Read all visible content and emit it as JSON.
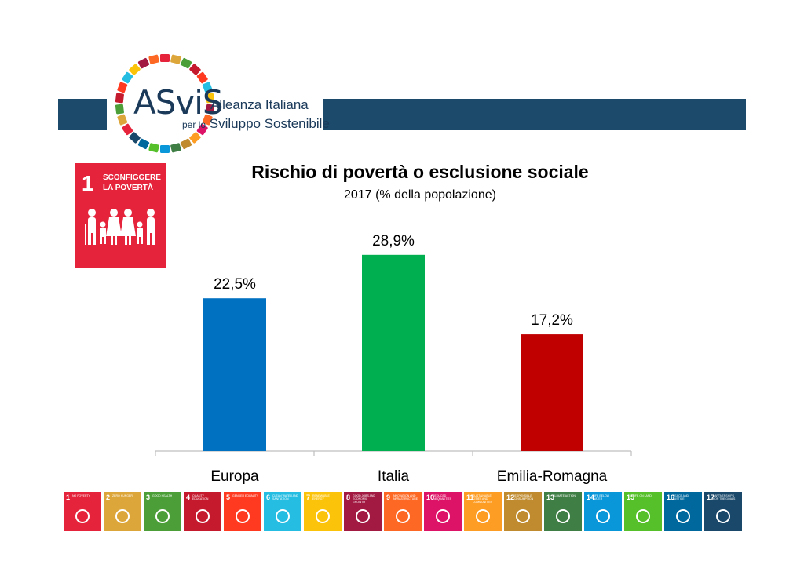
{
  "logo": {
    "name": "ASviS",
    "line1": "Alleanza Italiana",
    "line2_small": "per lo",
    "line2": "Sviluppo Sostenibile",
    "ring_colors": [
      "#e5243b",
      "#dda63a",
      "#4c9f38",
      "#c5192d",
      "#ff3a21",
      "#26bde2",
      "#fcc30b",
      "#a21942",
      "#fd6925",
      "#dd1367",
      "#fd9d24",
      "#bf8b2e",
      "#3f7e44",
      "#0a97d9",
      "#56c02b",
      "#00689d",
      "#19486a"
    ]
  },
  "goal": {
    "number": "1",
    "label": "SCONFIGGERE LA POVERTÀ",
    "color": "#e5243b"
  },
  "chart_data": {
    "type": "bar",
    "title": "Rischio di povertà o esclusione sociale",
    "subtitle": "2017 (% della popolazione)",
    "categories": [
      "Europa",
      "Italia",
      "Emilia-Romagna"
    ],
    "values": [
      22.5,
      28.9,
      17.2
    ],
    "value_labels": [
      "22,5%",
      "28,9%",
      "17,2%"
    ],
    "colors": [
      "#0070c0",
      "#00b050",
      "#c00000"
    ],
    "ylim": [
      0,
      35
    ],
    "grid": false,
    "legend": "none"
  },
  "sdg_strip": [
    {
      "n": "1",
      "t": "No poverty",
      "color": "#e5243b"
    },
    {
      "n": "2",
      "t": "Zero hunger",
      "color": "#dda63a"
    },
    {
      "n": "3",
      "t": "Good health",
      "color": "#4c9f38"
    },
    {
      "n": "4",
      "t": "Quality education",
      "color": "#c5192d"
    },
    {
      "n": "5",
      "t": "Gender equality",
      "color": "#ff3a21"
    },
    {
      "n": "6",
      "t": "Clean water and sanitation",
      "color": "#26bde2"
    },
    {
      "n": "7",
      "t": "Renewable energy",
      "color": "#fcc30b"
    },
    {
      "n": "8",
      "t": "Good jobs and economic growth",
      "color": "#a21942"
    },
    {
      "n": "9",
      "t": "Innovation and infrastructure",
      "color": "#fd6925"
    },
    {
      "n": "10",
      "t": "Reduced inequalities",
      "color": "#dd1367"
    },
    {
      "n": "11",
      "t": "Sustainable cities and communities",
      "color": "#fd9d24"
    },
    {
      "n": "12",
      "t": "Responsible consumption",
      "color": "#bf8b2e"
    },
    {
      "n": "13",
      "t": "Climate action",
      "color": "#3f7e44"
    },
    {
      "n": "14",
      "t": "Life below water",
      "color": "#0a97d9"
    },
    {
      "n": "15",
      "t": "Life on land",
      "color": "#56c02b"
    },
    {
      "n": "16",
      "t": "Peace and justice",
      "color": "#00689d"
    },
    {
      "n": "17",
      "t": "Partnerships for the goals",
      "color": "#19486a"
    }
  ]
}
